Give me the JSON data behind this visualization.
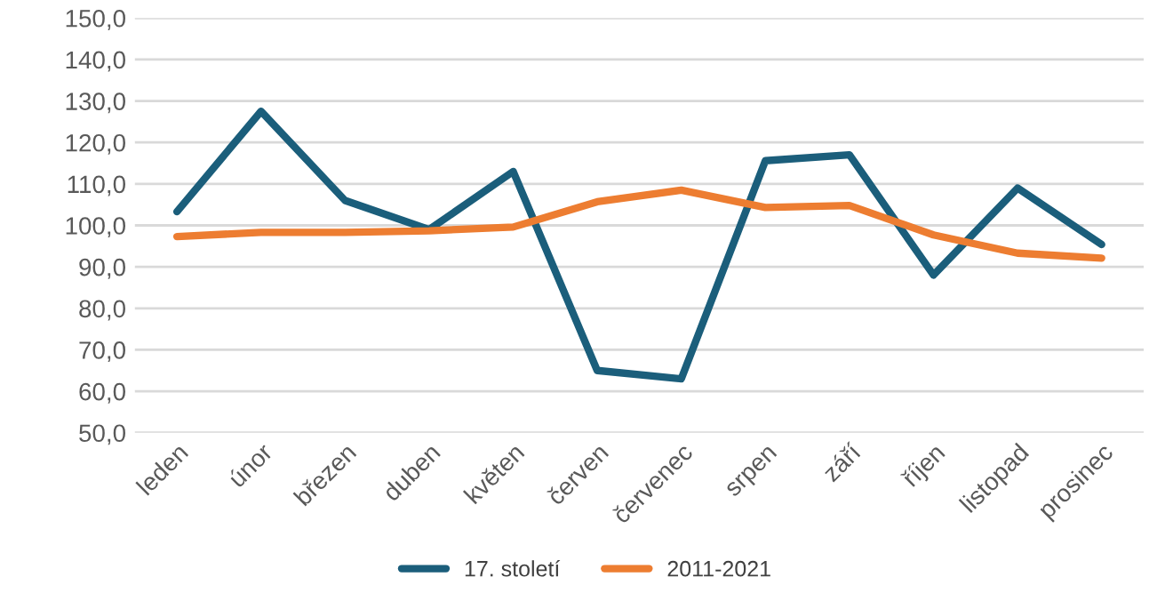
{
  "chart_data": {
    "type": "line",
    "categories": [
      "leden",
      "únor",
      "březen",
      "duben",
      "květen",
      "červen",
      "červenec",
      "srpen",
      "září",
      "říjen",
      "listopad",
      "prosinec"
    ],
    "series": [
      {
        "name": "17. století",
        "color": "#1b5e7b",
        "values": [
          103.3,
          127.5,
          106.0,
          99.0,
          113.0,
          65.0,
          63.0,
          115.6,
          117.0,
          88.0,
          109.0,
          95.4
        ]
      },
      {
        "name": "2011-2021",
        "color": "#ed7d31",
        "values": [
          97.3,
          98.3,
          98.3,
          98.7,
          99.6,
          105.7,
          108.5,
          104.3,
          104.8,
          97.7,
          93.3,
          92.1
        ]
      }
    ],
    "ylim": [
      50,
      150
    ],
    "yticks": [
      {
        "value": 50,
        "label": "50,0"
      },
      {
        "value": 60,
        "label": "60,0"
      },
      {
        "value": 70,
        "label": "70,0"
      },
      {
        "value": 80,
        "label": "80,0"
      },
      {
        "value": 90,
        "label": "90,0"
      },
      {
        "value": 100,
        "label": "100,0"
      },
      {
        "value": 110,
        "label": "110,0"
      },
      {
        "value": 120,
        "label": "120,0"
      },
      {
        "value": 130,
        "label": "130,0"
      },
      {
        "value": 140,
        "label": "140,0"
      },
      {
        "value": 150,
        "label": "150,0"
      }
    ],
    "grid": "y",
    "legend": "bottom",
    "marker": "none",
    "line_style": "solid"
  }
}
